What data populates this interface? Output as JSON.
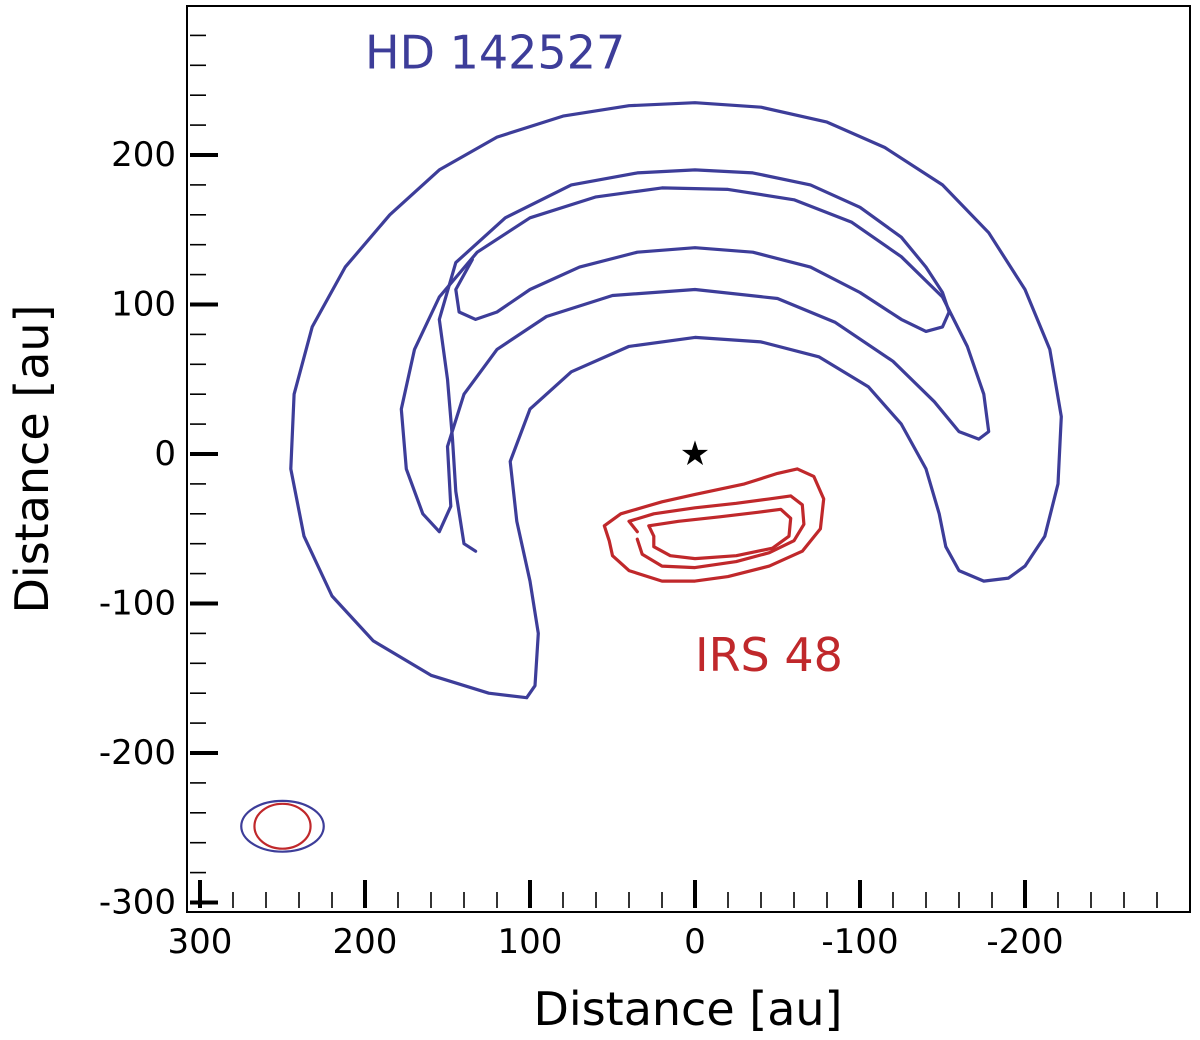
{
  "chart_data": {
    "type": "contour",
    "xlabel": "Distance [au]",
    "ylabel": "Distance [au]",
    "xlim": [
      300,
      -300
    ],
    "ylim": [
      -300,
      300
    ],
    "x_ticks": [
      300,
      200,
      100,
      0,
      -100,
      -200
    ],
    "y_ticks": [
      200,
      100,
      0,
      -100,
      -200,
      -300
    ],
    "grid": false,
    "star_marker": {
      "symbol": "★",
      "x": 0,
      "y": 0
    },
    "annotations": [
      {
        "text": "HD 142527",
        "x": 200,
        "y": 258,
        "color": "#3d3d99"
      },
      {
        "text": "IRS 48",
        "x": 0,
        "y": -145,
        "color": "#c0282b"
      }
    ],
    "series": [
      {
        "color": "#3d3d99",
        "contours": [
          [
            [
              102,
              -163
            ],
            [
              125,
              -160
            ],
            [
              160,
              -148
            ],
            [
              195,
              -125
            ],
            [
              220,
              -95
            ],
            [
              237,
              -55
            ],
            [
              245,
              -10
            ],
            [
              243,
              40
            ],
            [
              232,
              85
            ],
            [
              212,
              125
            ],
            [
              185,
              160
            ],
            [
              155,
              190
            ],
            [
              120,
              212
            ],
            [
              80,
              226
            ],
            [
              40,
              233
            ],
            [
              0,
              235
            ],
            [
              -40,
              232
            ],
            [
              -80,
              222
            ],
            [
              -115,
              205
            ],
            [
              -150,
              180
            ],
            [
              -178,
              148
            ],
            [
              -200,
              110
            ],
            [
              -215,
              70
            ],
            [
              -222,
              25
            ],
            [
              -220,
              -20
            ],
            [
              -212,
              -55
            ],
            [
              -200,
              -75
            ],
            [
              -190,
              -83
            ],
            [
              -175,
              -85
            ],
            [
              -160,
              -78
            ],
            [
              -152,
              -62
            ],
            [
              -148,
              -40
            ],
            [
              -140,
              -10
            ],
            [
              -125,
              20
            ],
            [
              -105,
              45
            ],
            [
              -75,
              65
            ],
            [
              -40,
              75
            ],
            [
              0,
              78
            ],
            [
              40,
              72
            ],
            [
              75,
              55
            ],
            [
              100,
              30
            ],
            [
              112,
              -5
            ],
            [
              108,
              -45
            ],
            [
              100,
              -85
            ],
            [
              95,
              -120
            ],
            [
              97,
              -155
            ],
            [
              102,
              -163
            ]
          ],
          [
            [
              155,
              -52
            ],
            [
              165,
              -40
            ],
            [
              175,
              -10
            ],
            [
              178,
              30
            ],
            [
              170,
              70
            ],
            [
              155,
              105
            ],
            [
              132,
              135
            ],
            [
              100,
              158
            ],
            [
              60,
              172
            ],
            [
              20,
              178
            ],
            [
              -20,
              177
            ],
            [
              -60,
              170
            ],
            [
              -95,
              155
            ],
            [
              -125,
              132
            ],
            [
              -150,
              105
            ],
            [
              -165,
              72
            ],
            [
              -175,
              40
            ],
            [
              -178,
              15
            ],
            [
              -172,
              10
            ],
            [
              -160,
              15
            ],
            [
              -145,
              35
            ],
            [
              -120,
              62
            ],
            [
              -85,
              88
            ],
            [
              -50,
              104
            ],
            [
              0,
              110
            ],
            [
              50,
              106
            ],
            [
              90,
              92
            ],
            [
              120,
              70
            ],
            [
              140,
              40
            ],
            [
              150,
              5
            ],
            [
              148,
              -35
            ],
            [
              155,
              -52
            ]
          ],
          [
            [
              133,
              -65
            ],
            [
              140,
              -60
            ],
            [
              145,
              -25
            ],
            [
              147,
              10
            ],
            [
              150,
              50
            ],
            [
              155,
              90
            ],
            [
              145,
              128
            ],
            [
              115,
              158
            ],
            [
              75,
              180
            ],
            [
              35,
              188
            ],
            [
              0,
              190
            ],
            [
              -35,
              188
            ],
            [
              -70,
              180
            ],
            [
              -100,
              165
            ],
            [
              -125,
              145
            ],
            [
              -140,
              125
            ],
            [
              -150,
              108
            ],
            [
              -154,
              95
            ],
            [
              -150,
              85
            ],
            [
              -140,
              82
            ],
            [
              -125,
              90
            ],
            [
              -100,
              108
            ],
            [
              -70,
              125
            ],
            [
              -35,
              135
            ],
            [
              0,
              138
            ],
            [
              35,
              135
            ],
            [
              70,
              125
            ],
            [
              100,
              110
            ],
            [
              120,
              95
            ],
            [
              133,
              90
            ],
            [
              143,
              95
            ],
            [
              145,
              110
            ],
            [
              135,
              130
            ]
          ]
        ],
        "beam": {
          "x": 250,
          "y": -249,
          "rx": 25,
          "ry": 17
        }
      },
      {
        "color": "#c0282b",
        "contours": [
          [
            [
              52,
              -58
            ],
            [
              55,
              -48
            ],
            [
              45,
              -40
            ],
            [
              20,
              -32
            ],
            [
              0,
              -27
            ],
            [
              -30,
              -20
            ],
            [
              -50,
              -13
            ],
            [
              -62,
              -10
            ],
            [
              -72,
              -15
            ],
            [
              -78,
              -30
            ],
            [
              -76,
              -50
            ],
            [
              -65,
              -65
            ],
            [
              -45,
              -75
            ],
            [
              -20,
              -82
            ],
            [
              0,
              -85
            ],
            [
              20,
              -85
            ],
            [
              40,
              -78
            ],
            [
              50,
              -68
            ],
            [
              52,
              -58
            ]
          ],
          [
            [
              35,
              -52
            ],
            [
              40,
              -45
            ],
            [
              25,
              -40
            ],
            [
              0,
              -36
            ],
            [
              -25,
              -33
            ],
            [
              -45,
              -30
            ],
            [
              -58,
              -28
            ],
            [
              -65,
              -34
            ],
            [
              -66,
              -47
            ],
            [
              -60,
              -58
            ],
            [
              -45,
              -66
            ],
            [
              -25,
              -72
            ],
            [
              0,
              -76
            ],
            [
              20,
              -75
            ],
            [
              32,
              -67
            ],
            [
              35,
              -57
            ]
          ],
          [
            [
              25,
              -55
            ],
            [
              28,
              -48
            ],
            [
              10,
              -45
            ],
            [
              -15,
              -42
            ],
            [
              -38,
              -39
            ],
            [
              -52,
              -37
            ],
            [
              -58,
              -43
            ],
            [
              -57,
              -55
            ],
            [
              -47,
              -63
            ],
            [
              -25,
              -68
            ],
            [
              0,
              -70
            ],
            [
              15,
              -68
            ],
            [
              25,
              -62
            ],
            [
              25,
              -55
            ]
          ]
        ],
        "beam": {
          "x": 250,
          "y": -249,
          "rx": 17,
          "ry": 15
        }
      }
    ]
  }
}
